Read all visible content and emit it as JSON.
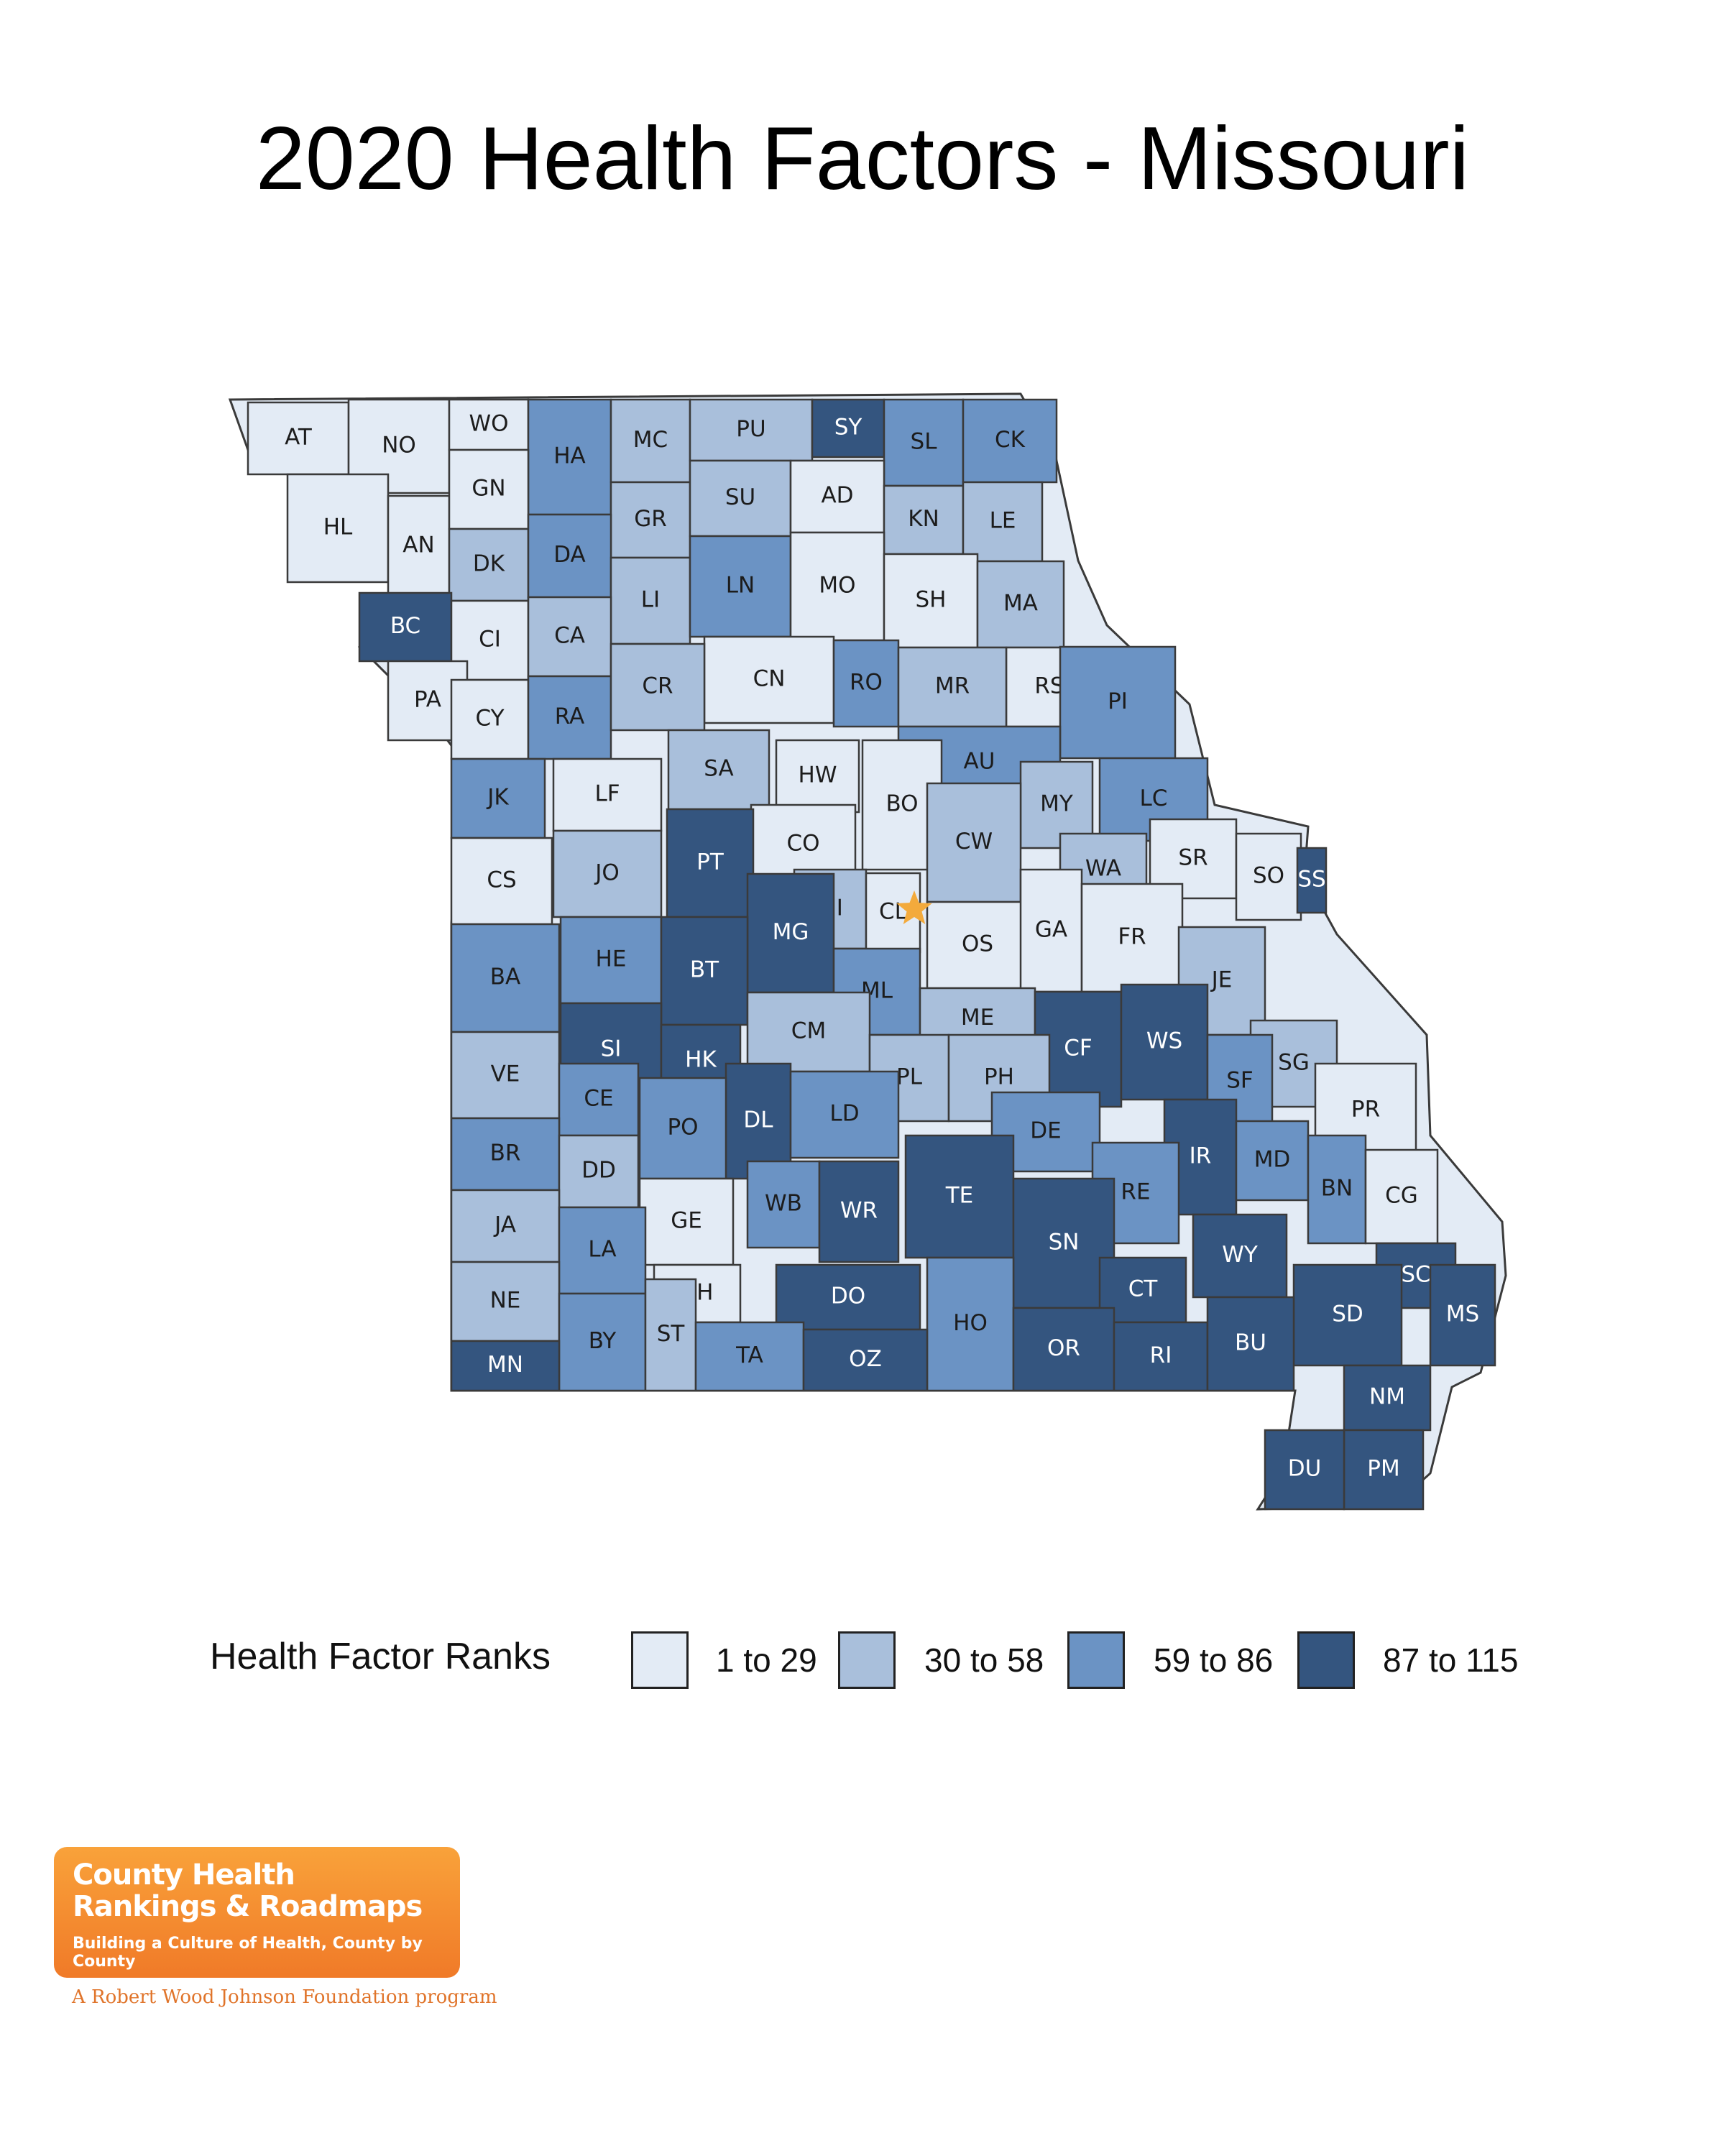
{
  "title": "2020 Health Factors - Missouri",
  "legend": {
    "title": "Health Factor Ranks",
    "items": [
      {
        "label": "1 to 29",
        "color": "#e3ebf5"
      },
      {
        "label": "30 to 58",
        "color": "#a9bfdb"
      },
      {
        "label": "59 to 86",
        "color": "#6b93c4"
      },
      {
        "label": "87 to 115",
        "color": "#34557f"
      }
    ]
  },
  "border_color": "#3a3a3a",
  "marker": {
    "name": "star-icon",
    "color": "#f3aa3c",
    "county": "CL"
  },
  "counties": [
    {
      "abbr": "AT",
      "tier": 0
    },
    {
      "abbr": "NO",
      "tier": 0
    },
    {
      "abbr": "WO",
      "tier": 0
    },
    {
      "abbr": "HA",
      "tier": 2
    },
    {
      "abbr": "MC",
      "tier": 1
    },
    {
      "abbr": "PU",
      "tier": 1
    },
    {
      "abbr": "SY",
      "tier": 3
    },
    {
      "abbr": "SL",
      "tier": 2
    },
    {
      "abbr": "CK",
      "tier": 2
    },
    {
      "abbr": "HL",
      "tier": 0
    },
    {
      "abbr": "AN",
      "tier": 0
    },
    {
      "abbr": "GN",
      "tier": 0
    },
    {
      "abbr": "GR",
      "tier": 1
    },
    {
      "abbr": "SU",
      "tier": 1
    },
    {
      "abbr": "AD",
      "tier": 0
    },
    {
      "abbr": "KN",
      "tier": 1
    },
    {
      "abbr": "LE",
      "tier": 1
    },
    {
      "abbr": "DK",
      "tier": 1
    },
    {
      "abbr": "DA",
      "tier": 2
    },
    {
      "abbr": "LI",
      "tier": 1
    },
    {
      "abbr": "LN",
      "tier": 2
    },
    {
      "abbr": "MO",
      "tier": 0
    },
    {
      "abbr": "SH",
      "tier": 0
    },
    {
      "abbr": "MA",
      "tier": 1
    },
    {
      "abbr": "BC",
      "tier": 3
    },
    {
      "abbr": "CI",
      "tier": 0
    },
    {
      "abbr": "CA",
      "tier": 1
    },
    {
      "abbr": "CN",
      "tier": 0
    },
    {
      "abbr": "RS",
      "tier": 0
    },
    {
      "abbr": "PA",
      "tier": 0
    },
    {
      "abbr": "CY",
      "tier": 0
    },
    {
      "abbr": "RA",
      "tier": 2
    },
    {
      "abbr": "CR",
      "tier": 1
    },
    {
      "abbr": "RO",
      "tier": 2
    },
    {
      "abbr": "MR",
      "tier": 1
    },
    {
      "abbr": "PI",
      "tier": 2
    },
    {
      "abbr": "SA",
      "tier": 1
    },
    {
      "abbr": "HW",
      "tier": 0
    },
    {
      "abbr": "AU",
      "tier": 2
    },
    {
      "abbr": "JK",
      "tier": 2
    },
    {
      "abbr": "LF",
      "tier": 0
    },
    {
      "abbr": "LC",
      "tier": 2
    },
    {
      "abbr": "BO",
      "tier": 0
    },
    {
      "abbr": "MY",
      "tier": 1
    },
    {
      "abbr": "CO",
      "tier": 0
    },
    {
      "abbr": "CW",
      "tier": 1
    },
    {
      "abbr": "WA",
      "tier": 1
    },
    {
      "abbr": "SR",
      "tier": 0
    },
    {
      "abbr": "CS",
      "tier": 0
    },
    {
      "abbr": "JO",
      "tier": 1
    },
    {
      "abbr": "PT",
      "tier": 3
    },
    {
      "abbr": "MI",
      "tier": 1
    },
    {
      "abbr": "CL",
      "tier": 0
    },
    {
      "abbr": "SO",
      "tier": 0
    },
    {
      "abbr": "SS",
      "tier": 3
    },
    {
      "abbr": "OS",
      "tier": 0
    },
    {
      "abbr": "GA",
      "tier": 0
    },
    {
      "abbr": "FR",
      "tier": 0
    },
    {
      "abbr": "HE",
      "tier": 2
    },
    {
      "abbr": "MG",
      "tier": 3
    },
    {
      "abbr": "BA",
      "tier": 2
    },
    {
      "abbr": "BT",
      "tier": 3
    },
    {
      "abbr": "ML",
      "tier": 2
    },
    {
      "abbr": "JE",
      "tier": 1
    },
    {
      "abbr": "ME",
      "tier": 1
    },
    {
      "abbr": "SI",
      "tier": 3
    },
    {
      "abbr": "CM",
      "tier": 1
    },
    {
      "abbr": "CF",
      "tier": 3
    },
    {
      "abbr": "WS",
      "tier": 3
    },
    {
      "abbr": "HK",
      "tier": 3
    },
    {
      "abbr": "SG",
      "tier": 1
    },
    {
      "abbr": "VE",
      "tier": 1
    },
    {
      "abbr": "PL",
      "tier": 1
    },
    {
      "abbr": "PH",
      "tier": 1
    },
    {
      "abbr": "SF",
      "tier": 2
    },
    {
      "abbr": "CE",
      "tier": 2
    },
    {
      "abbr": "PR",
      "tier": 0
    },
    {
      "abbr": "DL",
      "tier": 3
    },
    {
      "abbr": "LD",
      "tier": 2
    },
    {
      "abbr": "PO",
      "tier": 2
    },
    {
      "abbr": "BR",
      "tier": 2
    },
    {
      "abbr": "DE",
      "tier": 2
    },
    {
      "abbr": "IR",
      "tier": 3
    },
    {
      "abbr": "MD",
      "tier": 2
    },
    {
      "abbr": "DD",
      "tier": 1
    },
    {
      "abbr": "RE",
      "tier": 2
    },
    {
      "abbr": "TE",
      "tier": 3
    },
    {
      "abbr": "BN",
      "tier": 2
    },
    {
      "abbr": "CG",
      "tier": 0
    },
    {
      "abbr": "GE",
      "tier": 0
    },
    {
      "abbr": "WB",
      "tier": 2
    },
    {
      "abbr": "WR",
      "tier": 3
    },
    {
      "abbr": "JA",
      "tier": 1
    },
    {
      "abbr": "SN",
      "tier": 3
    },
    {
      "abbr": "WY",
      "tier": 3
    },
    {
      "abbr": "LA",
      "tier": 2
    },
    {
      "abbr": "SC",
      "tier": 3
    },
    {
      "abbr": "CH",
      "tier": 0
    },
    {
      "abbr": "DO",
      "tier": 3
    },
    {
      "abbr": "CT",
      "tier": 3
    },
    {
      "abbr": "NE",
      "tier": 1
    },
    {
      "abbr": "SD",
      "tier": 3
    },
    {
      "abbr": "MS",
      "tier": 3
    },
    {
      "abbr": "HO",
      "tier": 2
    },
    {
      "abbr": "BY",
      "tier": 2
    },
    {
      "abbr": "ST",
      "tier": 1
    },
    {
      "abbr": "TA",
      "tier": 2
    },
    {
      "abbr": "OR",
      "tier": 3
    },
    {
      "abbr": "RI",
      "tier": 3
    },
    {
      "abbr": "BU",
      "tier": 3
    },
    {
      "abbr": "OZ",
      "tier": 3
    },
    {
      "abbr": "MN",
      "tier": 3
    },
    {
      "abbr": "NM",
      "tier": 3
    },
    {
      "abbr": "PM",
      "tier": 3
    },
    {
      "abbr": "DU",
      "tier": 3
    }
  ],
  "logo": {
    "line1": "County Health",
    "line2": "Rankings & Roadmaps",
    "tagline": "Building a Culture of Health, County by County",
    "foundation": "A Robert Wood Johnson Foundation program"
  }
}
